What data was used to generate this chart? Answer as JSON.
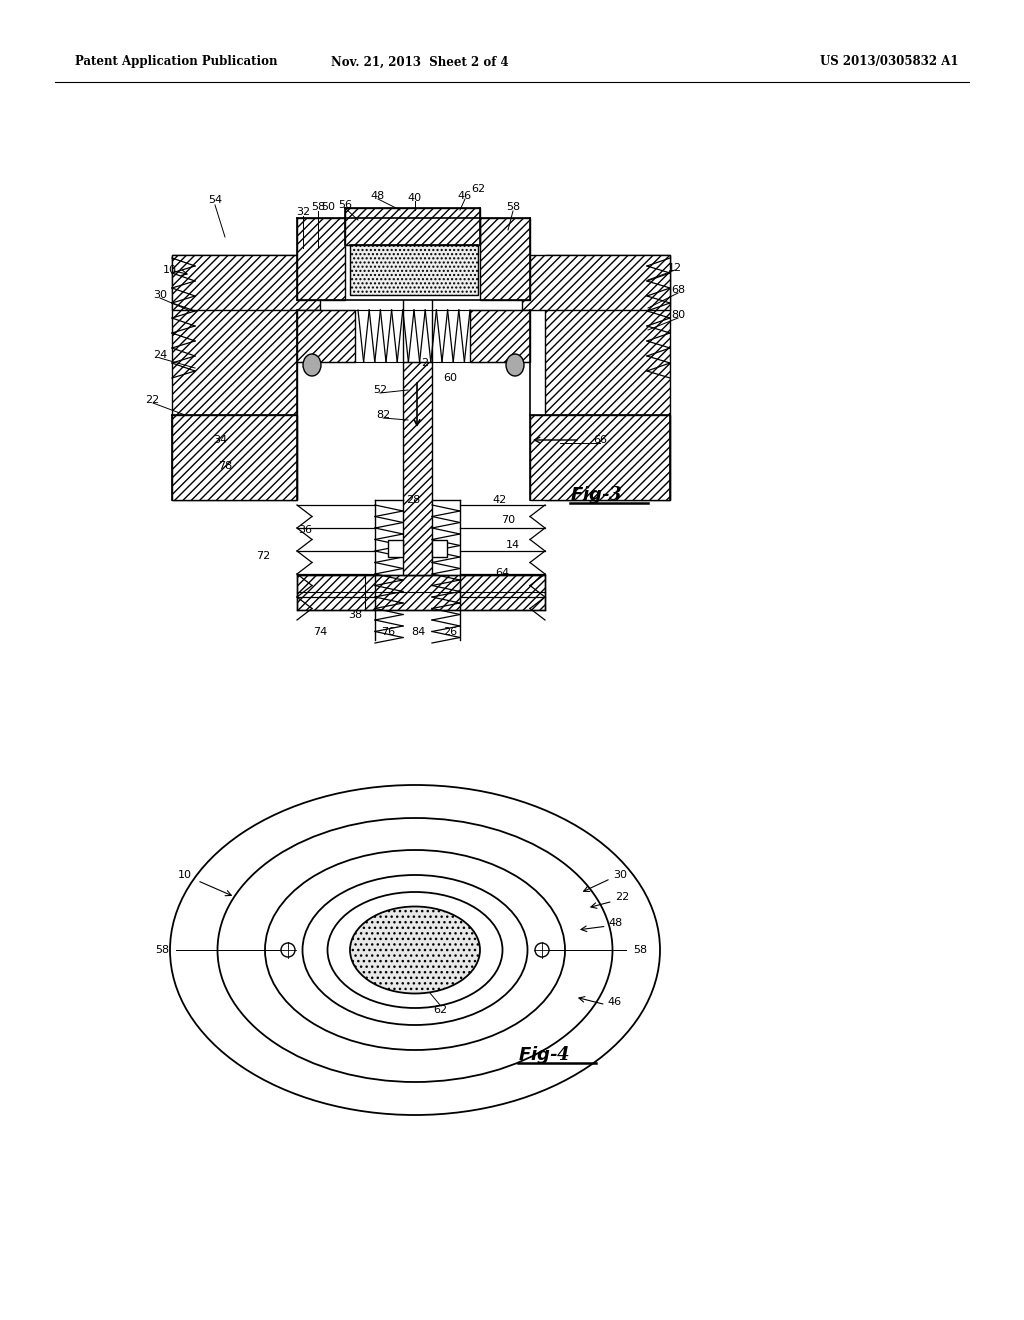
{
  "bg_color": "#ffffff",
  "line_color": "#000000",
  "header_left": "Patent Application Publication",
  "header_mid": "Nov. 21, 2013  Sheet 2 of 4",
  "header_right": "US 2013/0305832 A1",
  "fig3_label": "Fig-3",
  "fig4_label": "Fig-4"
}
